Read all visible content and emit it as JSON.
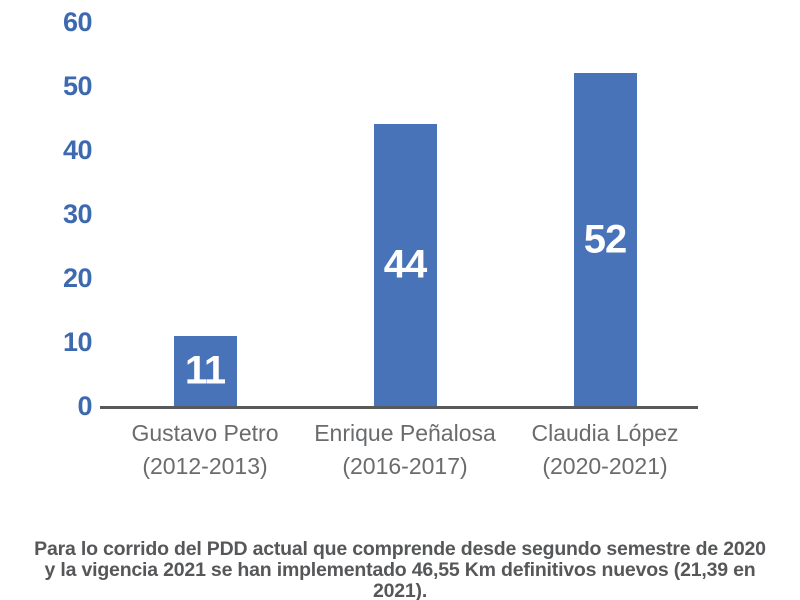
{
  "chart_data": {
    "type": "bar",
    "title": "",
    "xlabel": "",
    "ylabel": "",
    "categories": [
      "Gustavo Petro",
      "Enrique Peñalosa",
      "Claudia López"
    ],
    "category_periods": [
      "(2012-2013)",
      "(2016-2017)",
      "(2020-2021)"
    ],
    "values": [
      11,
      44,
      52
    ],
    "data_labels": [
      "11",
      "44",
      "52"
    ],
    "data_label_position": "center",
    "ylim": [
      0,
      60
    ],
    "yticks": [
      0,
      10,
      20,
      30,
      40,
      50,
      60
    ],
    "grid": false,
    "legend": false,
    "colors": {
      "bar": "#4873B9",
      "tick_label": "#3C69B0",
      "axis_line": "#58595B",
      "category_label": "#6A6B6D",
      "value_label": "#FFFFFF",
      "caption": "#565759",
      "background": "#FFFFFF"
    }
  },
  "caption": {
    "line1": "Para lo corrido del PDD actual que comprende desde segundo semestre de 2020",
    "line2": "y la vigencia 2021 se han implementado 46,55 Km definitivos nuevos (21,39 en 2021)."
  }
}
